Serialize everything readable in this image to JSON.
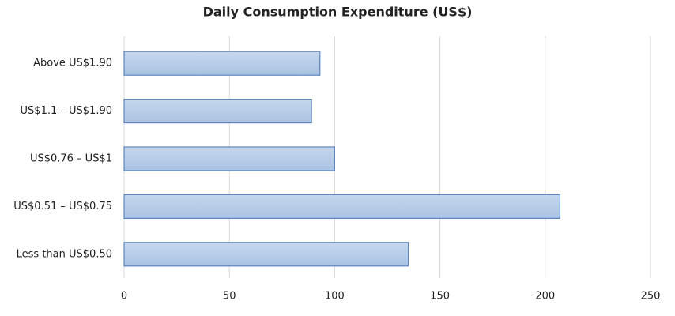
{
  "chart_data": {
    "type": "bar",
    "orientation": "horizontal",
    "title": "Daily Consumption Expenditure (US$)",
    "categories": [
      "Above US$1.90",
      "US$1.1 – US$1.90",
      "US$0.76 – US$1",
      "US$0.51 – US$0.75",
      "Less than US$0.50"
    ],
    "values": [
      93,
      89,
      100,
      207,
      135
    ],
    "color": "#aac3e3",
    "xlim": [
      0,
      250
    ],
    "xticks": [
      0,
      50,
      100,
      150,
      200,
      250
    ],
    "grid": true
  }
}
